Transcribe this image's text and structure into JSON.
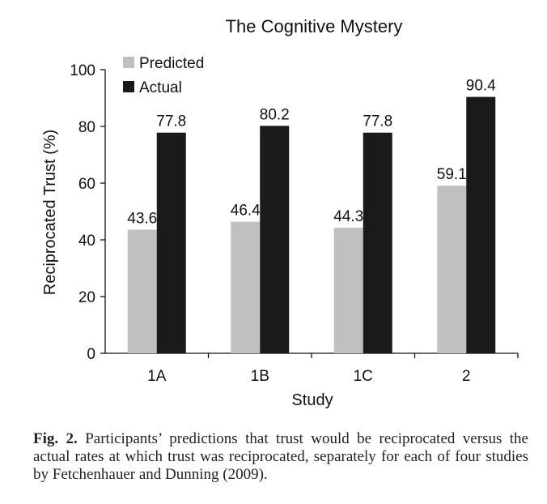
{
  "chart_data": {
    "type": "bar",
    "title": "The Cognitive Mystery",
    "xlabel": "Study",
    "ylabel": "Reciprocated Trust (%)",
    "categories": [
      "1A",
      "1B",
      "1C",
      "2"
    ],
    "ylim": [
      0,
      100
    ],
    "yticks": [
      0,
      20,
      40,
      60,
      80,
      100
    ],
    "legend_position": "top-left",
    "grid": false,
    "series": [
      {
        "name": "Predicted",
        "color": "#c0c0c0",
        "values": [
          43.6,
          46.4,
          44.3,
          59.1
        ],
        "labels": [
          "43.6",
          "46.4",
          "44.3",
          "59.1"
        ]
      },
      {
        "name": "Actual",
        "color": "#1a1a1a",
        "values": [
          77.8,
          80.2,
          77.8,
          90.4
        ],
        "labels": [
          "77.8",
          "80.2",
          "77.8",
          "90.4"
        ]
      }
    ]
  },
  "caption": {
    "label": "Fig. 2.",
    "text": "Participants’ predictions that trust would be reciprocated versus the actual rates at which trust was reciprocated, separately for each of four studies by Fetchenhauer and Dunning (2009)."
  }
}
